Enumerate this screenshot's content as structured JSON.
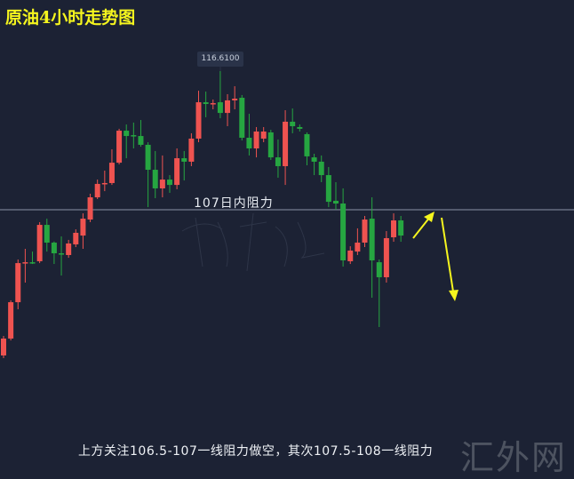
{
  "title": "原油4小时走势图",
  "watermark": "汇外网",
  "colors": {
    "background": "#1c2234",
    "up": "#ef5350",
    "down": "#26a641",
    "resistance_line": "#8a93a6",
    "arrow": "#f5f51e"
  },
  "chart_data": {
    "type": "candlestick",
    "title": "原油4小时走势图",
    "up_color": "red",
    "down_color": "green",
    "grid": false,
    "high_marker": {
      "label": "116.6100",
      "value": 116.61
    },
    "resistance": {
      "label": "107日内阻力",
      "value": 107
    },
    "annotation": "上方关注106.5-107一线阻力做空，其次107.5-108一线阻力",
    "arrows": [
      "up",
      "down"
    ],
    "ohlc": [
      [
        96.9,
        98.25,
        96.71,
        98.07
      ],
      [
        98.07,
        100.72,
        97.94,
        100.59
      ],
      [
        100.59,
        103.55,
        100.1,
        103.3
      ],
      [
        103.3,
        104.29,
        101.95,
        103.36
      ],
      [
        103.36,
        104.1,
        103.24,
        103.3
      ],
      [
        103.43,
        106.14,
        103.3,
        105.95
      ],
      [
        105.95,
        106.38,
        104.1,
        104.72
      ],
      [
        104.72,
        104.8,
        103.24,
        103.98
      ],
      [
        103.98,
        105.15,
        102.44,
        103.92
      ],
      [
        103.86,
        104.91,
        103.67,
        104.66
      ],
      [
        104.6,
        105.64,
        104.41,
        105.4
      ],
      [
        105.21,
        106.75,
        104.29,
        106.38
      ],
      [
        106.32,
        108.11,
        106.14,
        107.86
      ],
      [
        107.86,
        109.09,
        107.74,
        108.79
      ],
      [
        108.79,
        109.71,
        108.29,
        108.85
      ],
      [
        108.85,
        111.19,
        108.72,
        110.26
      ],
      [
        110.26,
        112.61,
        110.14,
        112.48
      ],
      [
        112.48,
        112.91,
        110.57,
        112.11
      ],
      [
        112.17,
        113.04,
        111.25,
        112.13
      ],
      [
        112.11,
        113.22,
        111.37,
        111.5
      ],
      [
        111.5,
        111.68,
        107.18,
        109.77
      ],
      [
        109.77,
        111.07,
        107.8,
        108.48
      ],
      [
        108.48,
        110.76,
        107.86,
        109.09
      ],
      [
        109.09,
        109.4,
        108.17,
        108.72
      ],
      [
        108.72,
        111.25,
        108.42,
        110.57
      ],
      [
        110.57,
        111.07,
        109.03,
        110.33
      ],
      [
        110.33,
        112.3,
        110.02,
        111.93
      ],
      [
        111.93,
        115.25,
        111.68,
        114.45
      ],
      [
        114.45,
        115.19,
        113.41,
        114.33
      ],
      [
        114.33,
        114.64,
        113.96,
        114.39
      ],
      [
        114.45,
        116.61,
        113.34,
        113.71
      ],
      [
        113.71,
        115.01,
        112.79,
        114.58
      ],
      [
        114.58,
        115.56,
        113.96,
        114.7
      ],
      [
        114.76,
        114.95,
        111.8,
        111.99
      ],
      [
        111.99,
        113.65,
        110.76,
        111.25
      ],
      [
        111.25,
        112.73,
        110.63,
        112.42
      ],
      [
        111.93,
        112.73,
        111.68,
        112.42
      ],
      [
        112.36,
        112.54,
        110.45,
        110.63
      ],
      [
        110.63,
        111.87,
        109.22,
        110.02
      ],
      [
        110.02,
        113.9,
        108.72,
        113.1
      ],
      [
        113.1,
        114.02,
        112.3,
        112.79
      ],
      [
        112.73,
        112.91,
        112.42,
        112.61
      ],
      [
        112.24,
        112.36,
        110.08,
        110.7
      ],
      [
        110.63,
        110.88,
        109.4,
        110.33
      ],
      [
        110.33,
        110.76,
        108.91,
        109.4
      ],
      [
        109.4,
        109.96,
        107.18,
        107.55
      ],
      [
        107.62,
        108.91,
        107.0,
        107.43
      ],
      [
        107.43,
        108.48,
        103.06,
        103.49
      ],
      [
        103.43,
        104.47,
        103.24,
        104.17
      ],
      [
        104.1,
        105.71,
        103.86,
        104.72
      ],
      [
        104.72,
        106.57,
        104.41,
        106.32
      ],
      [
        106.38,
        107.86,
        100.9,
        103.49
      ],
      [
        103.36,
        103.55,
        98.87,
        102.32
      ],
      [
        102.32,
        105.52,
        101.95,
        105.03
      ],
      [
        105.09,
        106.75,
        104.78,
        106.26
      ],
      [
        106.26,
        106.57,
        104.78,
        105.21
      ]
    ]
  }
}
